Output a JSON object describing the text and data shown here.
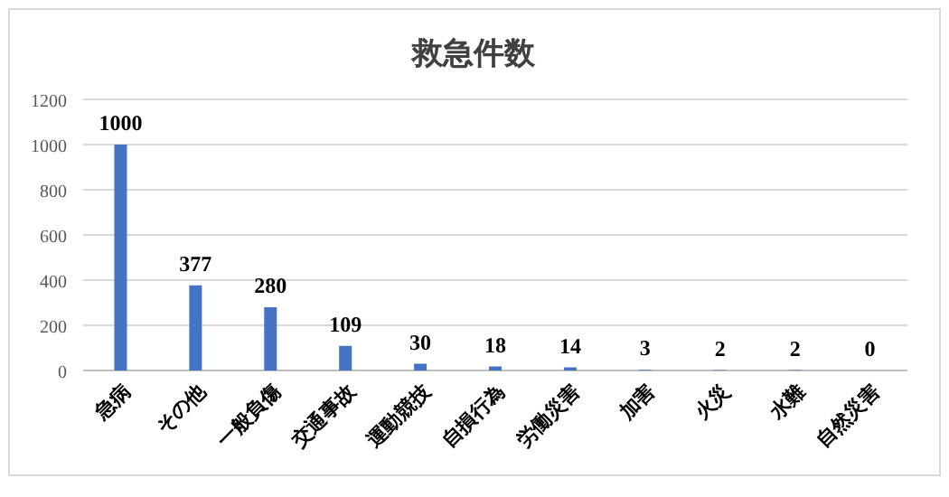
{
  "chart_data": {
    "type": "bar",
    "title": "救急件数",
    "categories": [
      "急病",
      "その他",
      "一般負傷",
      "交通事故",
      "運動競技",
      "自損行為",
      "労働災害",
      "加害",
      "火災",
      "水難",
      "自然災害"
    ],
    "values": [
      1000,
      377,
      280,
      109,
      30,
      18,
      14,
      3,
      2,
      2,
      0
    ],
    "color": "#4472c4",
    "ylim": [
      0,
      1200
    ],
    "yticks": [
      0,
      200,
      400,
      600,
      800,
      1000,
      1200
    ],
    "grid": "y",
    "data_labels": true
  }
}
